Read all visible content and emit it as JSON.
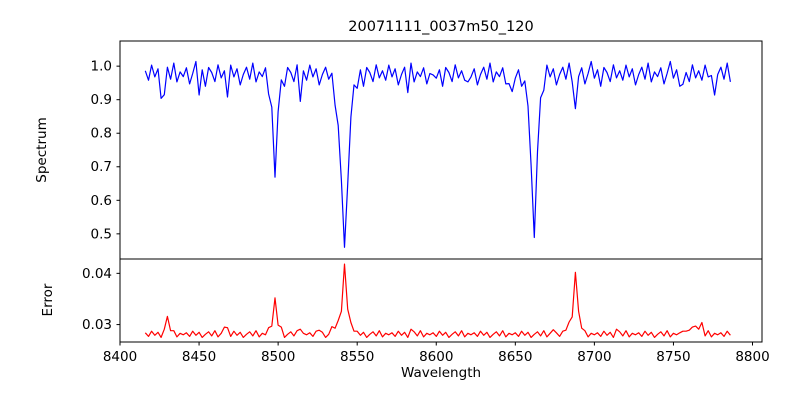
{
  "chart_data": {
    "type": "line",
    "title": "20071111_0037m50_120",
    "xlabel": "Wavelength",
    "grid": false,
    "legend": "none",
    "xlim": [
      8400,
      8806
    ],
    "xticks": [
      8400,
      8450,
      8500,
      8550,
      8600,
      8650,
      8700,
      8750,
      8800
    ],
    "x": [
      8416,
      8418,
      8420,
      8422,
      8424,
      8426,
      8428,
      8430,
      8432,
      8434,
      8436,
      8438,
      8440,
      8442,
      8444,
      8446,
      8448,
      8450,
      8452,
      8454,
      8456,
      8458,
      8460,
      8462,
      8464,
      8466,
      8468,
      8470,
      8472,
      8474,
      8476,
      8478,
      8480,
      8482,
      8484,
      8486,
      8488,
      8490,
      8492,
      8494,
      8496,
      8498,
      8500,
      8502,
      8504,
      8506,
      8508,
      8510,
      8512,
      8514,
      8516,
      8518,
      8520,
      8522,
      8524,
      8526,
      8528,
      8530,
      8532,
      8534,
      8536,
      8538,
      8540,
      8542,
      8544,
      8546,
      8548,
      8550,
      8552,
      8554,
      8556,
      8558,
      8560,
      8562,
      8564,
      8566,
      8568,
      8570,
      8572,
      8574,
      8576,
      8578,
      8580,
      8582,
      8584,
      8586,
      8588,
      8590,
      8592,
      8594,
      8596,
      8598,
      8600,
      8602,
      8604,
      8606,
      8608,
      8610,
      8612,
      8614,
      8616,
      8618,
      8620,
      8622,
      8624,
      8626,
      8628,
      8630,
      8632,
      8634,
      8636,
      8638,
      8640,
      8642,
      8644,
      8646,
      8648,
      8650,
      8652,
      8654,
      8656,
      8658,
      8660,
      8662,
      8664,
      8666,
      8668,
      8670,
      8672,
      8674,
      8676,
      8678,
      8680,
      8682,
      8684,
      8686,
      8688,
      8690,
      8692,
      8694,
      8696,
      8698,
      8700,
      8702,
      8704,
      8706,
      8708,
      8710,
      8712,
      8714,
      8716,
      8718,
      8720,
      8722,
      8724,
      8726,
      8728,
      8730,
      8732,
      8734,
      8736,
      8738,
      8740,
      8742,
      8744,
      8746,
      8748,
      8750,
      8752,
      8754,
      8756,
      8758,
      8760,
      8762,
      8764,
      8766,
      8768,
      8770,
      8772,
      8774,
      8776,
      8778,
      8780,
      8782,
      8784,
      8786
    ],
    "panels": [
      {
        "name": "spectrum",
        "ylabel": "Spectrum",
        "line_color": "#0000ff",
        "ylim": [
          0.425,
          1.075
        ],
        "yticks": [
          0.5,
          0.6,
          0.7,
          0.8,
          0.9,
          1.0
        ],
        "ytick_labels": [
          "0.5",
          "0.6",
          "0.7",
          "0.8",
          "0.9",
          "1.0"
        ],
        "values": [
          0.986,
          0.958,
          1.003,
          0.968,
          0.992,
          0.904,
          0.915,
          0.997,
          0.961,
          1.009,
          0.953,
          0.983,
          0.969,
          0.995,
          0.947,
          0.978,
          1.014,
          0.914,
          0.989,
          0.94,
          0.996,
          0.981,
          0.954,
          1.004,
          0.965,
          0.986,
          0.908,
          1.003,
          0.968,
          0.992,
          0.944,
          0.975,
          0.997,
          0.961,
          1.009,
          0.953,
          0.983,
          0.969,
          0.995,
          0.917,
          0.878,
          0.669,
          0.864,
          0.959,
          0.94,
          0.996,
          0.981,
          0.954,
          1.004,
          0.895,
          0.986,
          0.958,
          1.003,
          0.968,
          0.992,
          0.944,
          0.975,
          0.997,
          0.961,
          0.979,
          0.883,
          0.823,
          0.659,
          0.46,
          0.647,
          0.848,
          0.944,
          0.934,
          0.989,
          0.94,
          0.996,
          0.981,
          0.954,
          1.004,
          0.965,
          0.986,
          0.958,
          1.003,
          0.968,
          0.992,
          0.944,
          0.975,
          0.997,
          0.921,
          1.009,
          0.953,
          0.983,
          0.969,
          0.995,
          0.947,
          0.978,
          0.974,
          0.964,
          0.989,
          0.94,
          0.996,
          0.981,
          0.954,
          1.004,
          0.965,
          0.986,
          0.958,
          0.953,
          0.968,
          0.992,
          0.944,
          0.975,
          0.997,
          0.961,
          1.009,
          0.953,
          0.983,
          0.969,
          0.995,
          0.947,
          0.948,
          0.924,
          0.964,
          0.989,
          0.94,
          0.956,
          0.881,
          0.704,
          0.489,
          0.745,
          0.906,
          0.928,
          1.003,
          0.968,
          0.992,
          0.944,
          0.975,
          0.997,
          0.961,
          1.009,
          0.953,
          0.873,
          0.969,
          0.995,
          0.947,
          0.978,
          1.014,
          0.964,
          0.989,
          0.94,
          0.996,
          0.981,
          0.954,
          1.004,
          0.965,
          0.986,
          0.958,
          1.003,
          0.968,
          0.992,
          0.944,
          0.975,
          0.997,
          0.961,
          1.009,
          0.953,
          0.983,
          0.969,
          0.995,
          0.947,
          0.978,
          1.014,
          0.964,
          0.989,
          0.94,
          0.946,
          0.981,
          0.954,
          1.004,
          0.965,
          0.986,
          0.958,
          1.003,
          0.968,
          0.972,
          0.914,
          0.975,
          0.997,
          0.961,
          1.009,
          0.953
        ]
      },
      {
        "name": "error",
        "ylabel": "Error",
        "line_color": "#ff0000",
        "ylim": [
          0.0266,
          0.0428
        ],
        "yticks": [
          0.03,
          0.04
        ],
        "ytick_labels": [
          "0.03",
          "0.04"
        ],
        "values": [
          0.0284,
          0.0277,
          0.0287,
          0.0279,
          0.0285,
          0.0275,
          0.0291,
          0.0316,
          0.0288,
          0.0288,
          0.0276,
          0.0283,
          0.028,
          0.0284,
          0.0277,
          0.0287,
          0.0279,
          0.0285,
          0.0275,
          0.0281,
          0.0286,
          0.0278,
          0.0288,
          0.0276,
          0.0283,
          0.0295,
          0.0294,
          0.0277,
          0.0287,
          0.0279,
          0.0285,
          0.0275,
          0.0281,
          0.0286,
          0.0278,
          0.0288,
          0.0276,
          0.0283,
          0.028,
          0.0294,
          0.0297,
          0.0352,
          0.0299,
          0.0295,
          0.0275,
          0.0281,
          0.0286,
          0.0278,
          0.0288,
          0.0291,
          0.0283,
          0.028,
          0.0284,
          0.0277,
          0.0287,
          0.0289,
          0.0285,
          0.0275,
          0.0281,
          0.0296,
          0.0293,
          0.0308,
          0.0326,
          0.0418,
          0.033,
          0.0304,
          0.0287,
          0.0287,
          0.0279,
          0.0285,
          0.0275,
          0.0281,
          0.0286,
          0.0278,
          0.0288,
          0.0276,
          0.0283,
          0.028,
          0.0284,
          0.0277,
          0.0287,
          0.0279,
          0.0285,
          0.0275,
          0.0291,
          0.0286,
          0.0278,
          0.0288,
          0.0276,
          0.0283,
          0.028,
          0.0284,
          0.0277,
          0.0287,
          0.0279,
          0.0285,
          0.0275,
          0.0281,
          0.0286,
          0.0278,
          0.0288,
          0.0276,
          0.0283,
          0.028,
          0.0284,
          0.0277,
          0.0287,
          0.0279,
          0.0285,
          0.0275,
          0.0281,
          0.0286,
          0.0278,
          0.0288,
          0.0276,
          0.0283,
          0.028,
          0.0284,
          0.0277,
          0.0287,
          0.0279,
          0.0285,
          0.0275,
          0.0281,
          0.0286,
          0.0278,
          0.0288,
          0.0276,
          0.0283,
          0.029,
          0.0284,
          0.0277,
          0.0287,
          0.0289,
          0.0305,
          0.0315,
          0.0402,
          0.0326,
          0.0293,
          0.0288,
          0.0276,
          0.0283,
          0.028,
          0.0284,
          0.0277,
          0.0287,
          0.0279,
          0.0285,
          0.0275,
          0.0291,
          0.0286,
          0.0278,
          0.0288,
          0.0276,
          0.0283,
          0.028,
          0.0284,
          0.0277,
          0.0287,
          0.0279,
          0.0285,
          0.0275,
          0.0281,
          0.0286,
          0.0278,
          0.0288,
          0.0276,
          0.0283,
          0.028,
          0.0284,
          0.0287,
          0.0287,
          0.0289,
          0.0295,
          0.0297,
          0.0291,
          0.0304,
          0.0278,
          0.0288,
          0.0276,
          0.0283,
          0.028,
          0.0284,
          0.0277,
          0.0287,
          0.0279
        ]
      }
    ]
  },
  "colors": {
    "spectrum_line": "#0000ff",
    "error_line": "#ff0000",
    "spine": "#000000",
    "background": "#ffffff"
  }
}
